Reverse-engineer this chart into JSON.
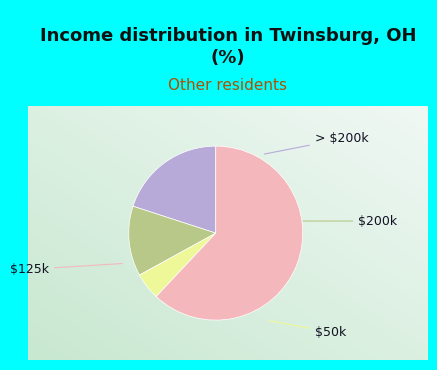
{
  "title": "Income distribution in Twinsburg, OH\n(%)",
  "subtitle": "Other residents",
  "title_color": "#111111",
  "subtitle_color": "#b05000",
  "title_fontsize": 13,
  "subtitle_fontsize": 11,
  "background_color": "#00ffff",
  "chart_bg_left": "#c8e8d0",
  "chart_bg_right": "#f0f8f4",
  "slices": [
    {
      "label": "> $200k",
      "value": 20,
      "color": "#b8aad8"
    },
    {
      "label": "$200k",
      "value": 13,
      "color": "#b8c888"
    },
    {
      "label": "$50k",
      "value": 5,
      "color": "#eef898"
    },
    {
      "label": "$125k",
      "value": 62,
      "color": "#f4b8bc"
    }
  ],
  "startangle": 90,
  "label_fontsize": 9,
  "label_color": "#111122"
}
